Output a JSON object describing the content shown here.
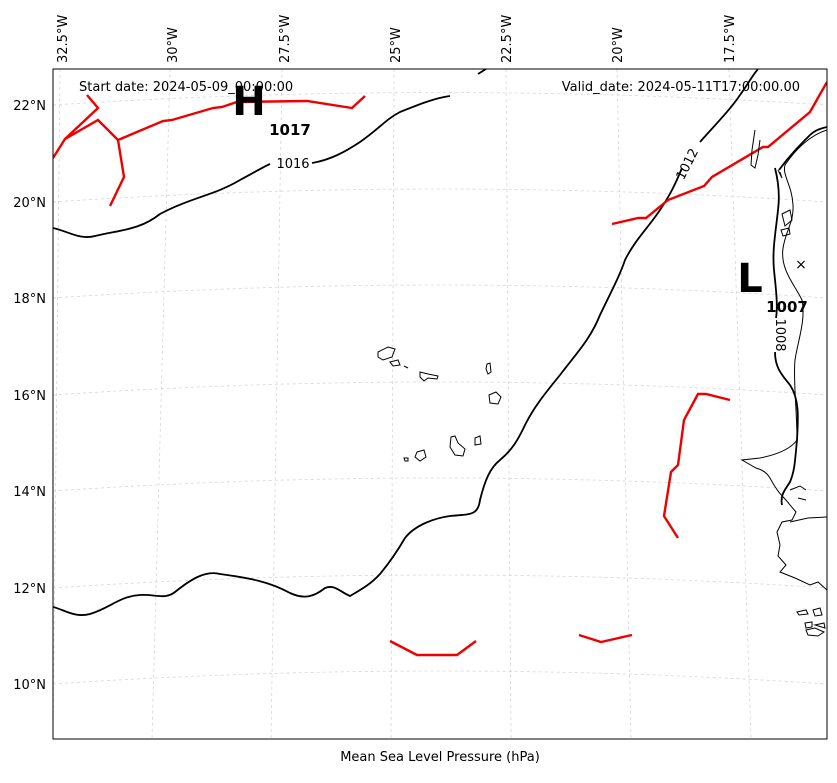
{
  "map": {
    "start_date": "Start date: 2024-05-09_00:00:00",
    "valid_date": "Valid_date: 2024-05-11T17:00:00.00",
    "xlabel": "Mean Sea Level Pressure (hPa)",
    "lon_labels": [
      "32.5°W",
      "30°W",
      "27.5°W",
      "25°W",
      "22.5°W",
      "20°W",
      "17.5°W"
    ],
    "lat_labels": [
      "22°N",
      "20°N",
      "18°N",
      "16°N",
      "14°N",
      "12°N",
      "10°N"
    ],
    "high": {
      "symbol": "H",
      "value": "1017"
    },
    "low": {
      "symbol": "L",
      "value": "1007",
      "marker": "×"
    },
    "isobar_labels": [
      "1016",
      "1012",
      "1008"
    ],
    "colors": {
      "isobar": "#000000",
      "front": "#ee0000",
      "coast": "#000000",
      "grid": "#d0d0d0"
    }
  }
}
